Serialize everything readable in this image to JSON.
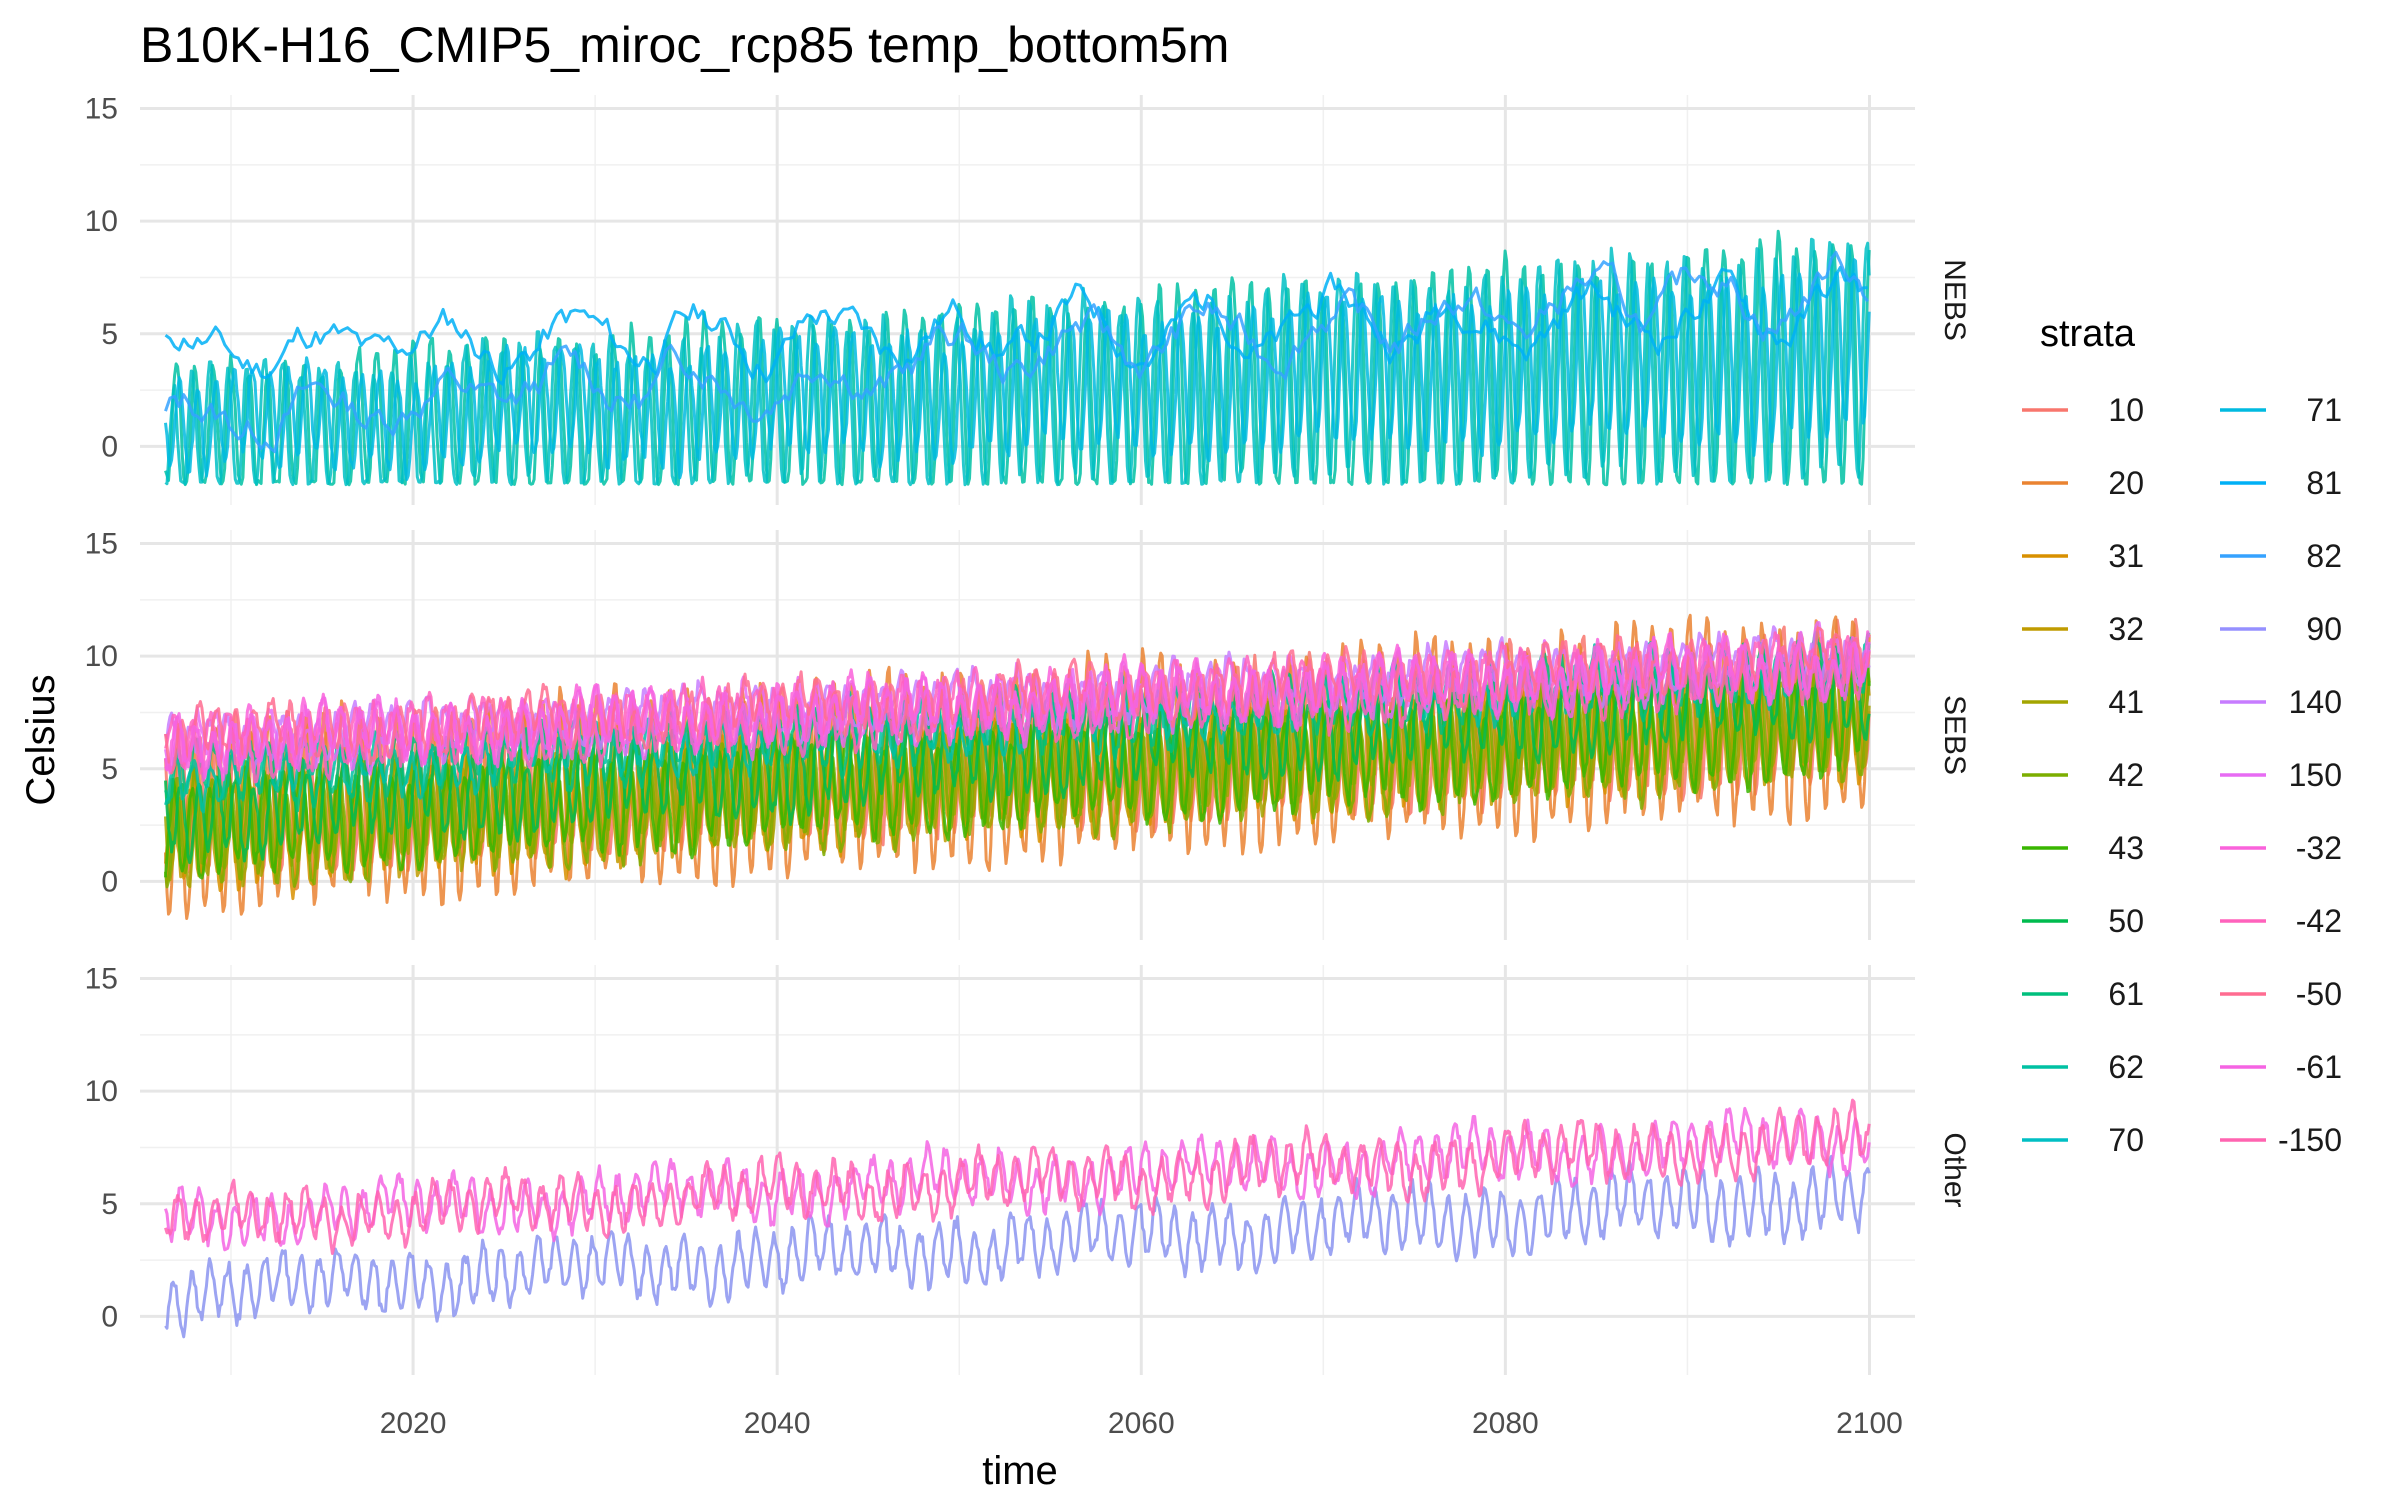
{
  "chart_data": {
    "type": "line",
    "title": "B10K-H16_CMIP5_miroc_rcp85 temp_bottom5m",
    "xlabel": "time",
    "ylabel": "Celsius",
    "xlim": [
      2006,
      2100
    ],
    "x_ticks": [
      2020,
      2040,
      2060,
      2080,
      2100
    ],
    "ylim": [
      -2,
      15
    ],
    "y_ticks": [
      0,
      5,
      10,
      15
    ],
    "grid": true,
    "legend": {
      "title": "strata",
      "placement": "right",
      "columns": 2,
      "entries": [
        {
          "name": "10",
          "color": "#F8766D"
        },
        {
          "name": "20",
          "color": "#EA8331"
        },
        {
          "name": "31",
          "color": "#D89000"
        },
        {
          "name": "32",
          "color": "#C09B00"
        },
        {
          "name": "41",
          "color": "#A3A500"
        },
        {
          "name": "42",
          "color": "#7CAE00"
        },
        {
          "name": "43",
          "color": "#39B600"
        },
        {
          "name": "50",
          "color": "#00BB4E"
        },
        {
          "name": "61",
          "color": "#00BF7D"
        },
        {
          "name": "62",
          "color": "#00C1A3"
        },
        {
          "name": "70",
          "color": "#00BFC4"
        },
        {
          "name": "71",
          "color": "#00BAE0"
        },
        {
          "name": "81",
          "color": "#00B0F6"
        },
        {
          "name": "82",
          "color": "#35A2FF"
        },
        {
          "name": "90",
          "color": "#9590FF"
        },
        {
          "name": "140",
          "color": "#C77CFF"
        },
        {
          "name": "150",
          "color": "#E76BF3"
        },
        {
          "name": "-32",
          "color": "#FA62DB"
        },
        {
          "name": "-42",
          "color": "#FF62BC"
        },
        {
          "name": "-50",
          "color": "#FF6C91"
        },
        {
          "name": "-61",
          "color": "#F564E3"
        },
        {
          "name": "-150",
          "color": "#FF64B0"
        }
      ]
    },
    "panels": [
      {
        "label": "NEBS",
        "series": [
          {
            "name": "70",
            "color": "#00C1A3",
            "kind": "seasonal",
            "base_start": 0.6,
            "base_end": 3.5,
            "amp_start": 2.8,
            "amp_end": 5.6,
            "min_clip": -1.7,
            "seed": 3
          },
          {
            "name": "71",
            "color": "#00BFC4",
            "kind": "seasonal",
            "base_start": 0.4,
            "base_end": 3.8,
            "amp_start": 2.6,
            "amp_end": 5.2,
            "min_clip": -1.7,
            "seed": 5
          },
          {
            "name": "81",
            "color": "#00BAE0",
            "kind": "seasonal",
            "base_start": 0.9,
            "base_end": 4.2,
            "amp_start": 1.8,
            "amp_end": 3.6,
            "min_clip": -1.5,
            "seed": 8
          },
          {
            "name": "82",
            "color": "#00B0F6",
            "kind": "slow",
            "base_start": 4.2,
            "base_end": 6.2,
            "amp_start": 0.8,
            "amp_end": 1.0,
            "min_clip": -1.5,
            "seed": 11
          },
          {
            "name": "90",
            "color": "#35A2FF",
            "kind": "slow",
            "base_start": 1.2,
            "base_end": 7.2,
            "amp_start": 0.6,
            "amp_end": 1.2,
            "min_clip": -1.5,
            "seed": 13
          }
        ]
      },
      {
        "label": "SEBS",
        "series": [
          {
            "name": "10",
            "color": "#F8766D",
            "kind": "seasonal",
            "base_start": 3.5,
            "base_end": 7.8,
            "amp_start": 3.0,
            "amp_end": 3.2,
            "min_clip": -1.6,
            "seed": 21
          },
          {
            "name": "20",
            "color": "#EA8331",
            "kind": "seasonal",
            "base_start": 2.8,
            "base_end": 7.6,
            "amp_start": 4.0,
            "amp_end": 4.2,
            "min_clip": -1.8,
            "seed": 23
          },
          {
            "name": "31",
            "color": "#D89000",
            "kind": "seasonal",
            "base_start": 2.0,
            "base_end": 7.0,
            "amp_start": 2.2,
            "amp_end": 2.3,
            "min_clip": -1.0,
            "seed": 25
          },
          {
            "name": "32",
            "color": "#C09B00",
            "kind": "seasonal",
            "base_start": 2.2,
            "base_end": 7.2,
            "amp_start": 2.0,
            "amp_end": 2.1,
            "min_clip": -1.0,
            "seed": 27
          },
          {
            "name": "41",
            "color": "#A3A500",
            "kind": "seasonal",
            "base_start": 2.4,
            "base_end": 7.4,
            "amp_start": 2.0,
            "amp_end": 2.0,
            "min_clip": -1.0,
            "seed": 29
          },
          {
            "name": "42",
            "color": "#7CAE00",
            "kind": "seasonal",
            "base_start": 2.0,
            "base_end": 6.8,
            "amp_start": 2.1,
            "amp_end": 2.1,
            "min_clip": -1.0,
            "seed": 31
          },
          {
            "name": "43",
            "color": "#39B600",
            "kind": "seasonal",
            "base_start": 2.3,
            "base_end": 7.0,
            "amp_start": 2.0,
            "amp_end": 2.0,
            "min_clip": -1.0,
            "seed": 33
          },
          {
            "name": "50",
            "color": "#00BB4E",
            "kind": "seasonal",
            "base_start": 3.0,
            "base_end": 8.5,
            "amp_start": 1.6,
            "amp_end": 1.6,
            "min_clip": -1.0,
            "seed": 35
          },
          {
            "name": "61",
            "color": "#00BF7D",
            "kind": "seasonal",
            "base_start": 4.5,
            "base_end": 9.4,
            "amp_start": 1.0,
            "amp_end": 1.0,
            "min_clip": -1.0,
            "seed": 37
          },
          {
            "name": "62",
            "color": "#00C1A3",
            "kind": "seasonal",
            "base_start": 4.6,
            "base_end": 9.6,
            "amp_start": 0.9,
            "amp_end": 0.9,
            "min_clip": -1.0,
            "seed": 39
          },
          {
            "name": "140",
            "color": "#C77CFF",
            "kind": "seasonal",
            "base_start": 6.3,
            "base_end": 10.0,
            "amp_start": 0.8,
            "amp_end": 0.8,
            "min_clip": -1.0,
            "seed": 41
          },
          {
            "name": "150",
            "color": "#E76BF3",
            "kind": "seasonal",
            "base_start": 6.0,
            "base_end": 9.8,
            "amp_start": 0.9,
            "amp_end": 0.9,
            "min_clip": -1.0,
            "seed": 43
          },
          {
            "name": "-32",
            "color": "#FA62DB",
            "kind": "seasonal",
            "base_start": 6.2,
            "base_end": 9.7,
            "amp_start": 1.0,
            "amp_end": 1.0,
            "min_clip": -1.0,
            "seed": 45
          },
          {
            "name": "-42",
            "color": "#FF62BC",
            "kind": "seasonal",
            "base_start": 6.0,
            "base_end": 9.5,
            "amp_start": 1.1,
            "amp_end": 1.1,
            "min_clip": -1.0,
            "seed": 47
          },
          {
            "name": "-50",
            "color": "#FF6C91",
            "kind": "seasonal",
            "base_start": 6.4,
            "base_end": 9.9,
            "amp_start": 0.9,
            "amp_end": 0.9,
            "min_clip": -1.0,
            "seed": 49
          },
          {
            "name": "-61",
            "color": "#F564E3",
            "kind": "seasonal",
            "base_start": 6.1,
            "base_end": 9.6,
            "amp_start": 1.0,
            "amp_end": 1.0,
            "min_clip": -1.0,
            "seed": 51
          }
        ]
      },
      {
        "label": "Other",
        "series": [
          {
            "name": "140",
            "color": "#8B94F0",
            "kind": "seasonal",
            "base_start": 1.0,
            "base_end": 5.4,
            "amp_start": 1.1,
            "amp_end": 1.3,
            "min_clip": -1.0,
            "seed": 61
          },
          {
            "name": "-61",
            "color": "#F564E3",
            "kind": "seasonal",
            "base_start": 4.3,
            "base_end": 7.9,
            "amp_start": 0.9,
            "amp_end": 1.0,
            "min_clip": -1.0,
            "seed": 63
          },
          {
            "name": "-150",
            "color": "#FF64B0",
            "kind": "seasonal",
            "base_start": 4.2,
            "base_end": 7.8,
            "amp_start": 0.9,
            "amp_end": 1.0,
            "min_clip": -1.0,
            "seed": 65
          }
        ]
      }
    ]
  }
}
